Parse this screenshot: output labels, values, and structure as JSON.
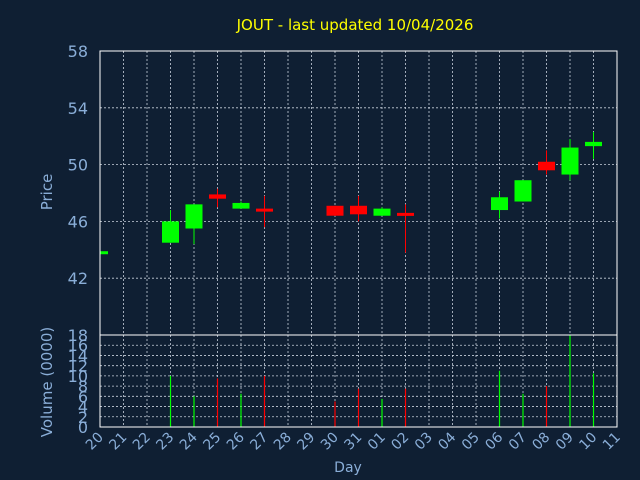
{
  "chart_data": [
    {
      "type": "candlestick",
      "title": "JOUT - last updated 10/04/2026",
      "ylabel": "Price",
      "ylim": [
        38,
        58
      ],
      "yticks": [
        42,
        46,
        50,
        54,
        58
      ],
      "grid": true,
      "colors": {
        "up": "#00ff00",
        "down": "#ff0000",
        "title": "#ffff00",
        "axis_text": "#8aaed8",
        "grid": "#c8d0dc",
        "background": "#0f1f33"
      },
      "x": [
        "20",
        "21",
        "22",
        "23",
        "24",
        "25",
        "26",
        "27",
        "28",
        "29",
        "30",
        "31",
        "01",
        "02",
        "03",
        "04",
        "05",
        "06",
        "07",
        "08",
        "09",
        "10",
        "11"
      ],
      "candles": [
        {
          "day": "20",
          "open": 43.7,
          "close": 43.9,
          "high": 43.9,
          "low": 43.7
        },
        {
          "day": "23",
          "open": 44.5,
          "close": 46.0,
          "high": 46.8,
          "low": 44.5
        },
        {
          "day": "24",
          "open": 45.5,
          "close": 47.2,
          "high": 47.2,
          "low": 44.4
        },
        {
          "day": "25",
          "open": 47.9,
          "close": 47.6,
          "high": 48.3,
          "low": 47.0
        },
        {
          "day": "26",
          "open": 46.9,
          "close": 47.3,
          "high": 47.4,
          "low": 46.9
        },
        {
          "day": "27",
          "open": 46.9,
          "close": 46.8,
          "high": 47.8,
          "low": 45.6
        },
        {
          "day": "30",
          "open": 47.1,
          "close": 46.4,
          "high": 47.1,
          "low": 46.4
        },
        {
          "day": "31",
          "open": 47.1,
          "close": 46.5,
          "high": 47.8,
          "low": 46.0
        },
        {
          "day": "01",
          "open": 46.4,
          "close": 46.9,
          "high": 47.0,
          "low": 46.4
        },
        {
          "day": "02",
          "open": 46.6,
          "close": 46.4,
          "high": 47.2,
          "low": 43.8
        },
        {
          "day": "06",
          "open": 46.8,
          "close": 47.7,
          "high": 48.1,
          "low": 46.2
        },
        {
          "day": "07",
          "open": 47.4,
          "close": 48.9,
          "high": 48.9,
          "low": 47.4
        },
        {
          "day": "08",
          "open": 50.2,
          "close": 49.6,
          "high": 51.0,
          "low": 49.3
        },
        {
          "day": "09",
          "open": 49.3,
          "close": 51.2,
          "high": 51.8,
          "low": 48.9
        },
        {
          "day": "10",
          "open": 51.3,
          "close": 51.6,
          "high": 52.3,
          "low": 50.4
        }
      ]
    },
    {
      "type": "bar",
      "ylabel": "Volume (0000)",
      "xlabel": "Day",
      "ylim": [
        0,
        18
      ],
      "yticks": [
        0,
        2,
        4,
        6,
        8,
        10,
        12,
        14,
        16,
        18
      ],
      "grid": true,
      "x": [
        "20",
        "21",
        "22",
        "23",
        "24",
        "25",
        "26",
        "27",
        "28",
        "29",
        "30",
        "31",
        "01",
        "02",
        "03",
        "04",
        "05",
        "06",
        "07",
        "08",
        "09",
        "10",
        "11"
      ],
      "bars": [
        {
          "day": "23",
          "value": 10.0,
          "direction": "up"
        },
        {
          "day": "24",
          "value": 6.0,
          "direction": "up"
        },
        {
          "day": "25",
          "value": 9.5,
          "direction": "down"
        },
        {
          "day": "26",
          "value": 6.5,
          "direction": "up"
        },
        {
          "day": "27",
          "value": 10.0,
          "direction": "down"
        },
        {
          "day": "30",
          "value": 5.0,
          "direction": "down"
        },
        {
          "day": "31",
          "value": 7.5,
          "direction": "down"
        },
        {
          "day": "01",
          "value": 5.5,
          "direction": "up"
        },
        {
          "day": "02",
          "value": 7.5,
          "direction": "down"
        },
        {
          "day": "06",
          "value": 11.0,
          "direction": "up"
        },
        {
          "day": "07",
          "value": 6.5,
          "direction": "up"
        },
        {
          "day": "08",
          "value": 8.0,
          "direction": "down"
        },
        {
          "day": "09",
          "value": 18.0,
          "direction": "up"
        },
        {
          "day": "10",
          "value": 10.5,
          "direction": "up"
        }
      ]
    }
  ]
}
